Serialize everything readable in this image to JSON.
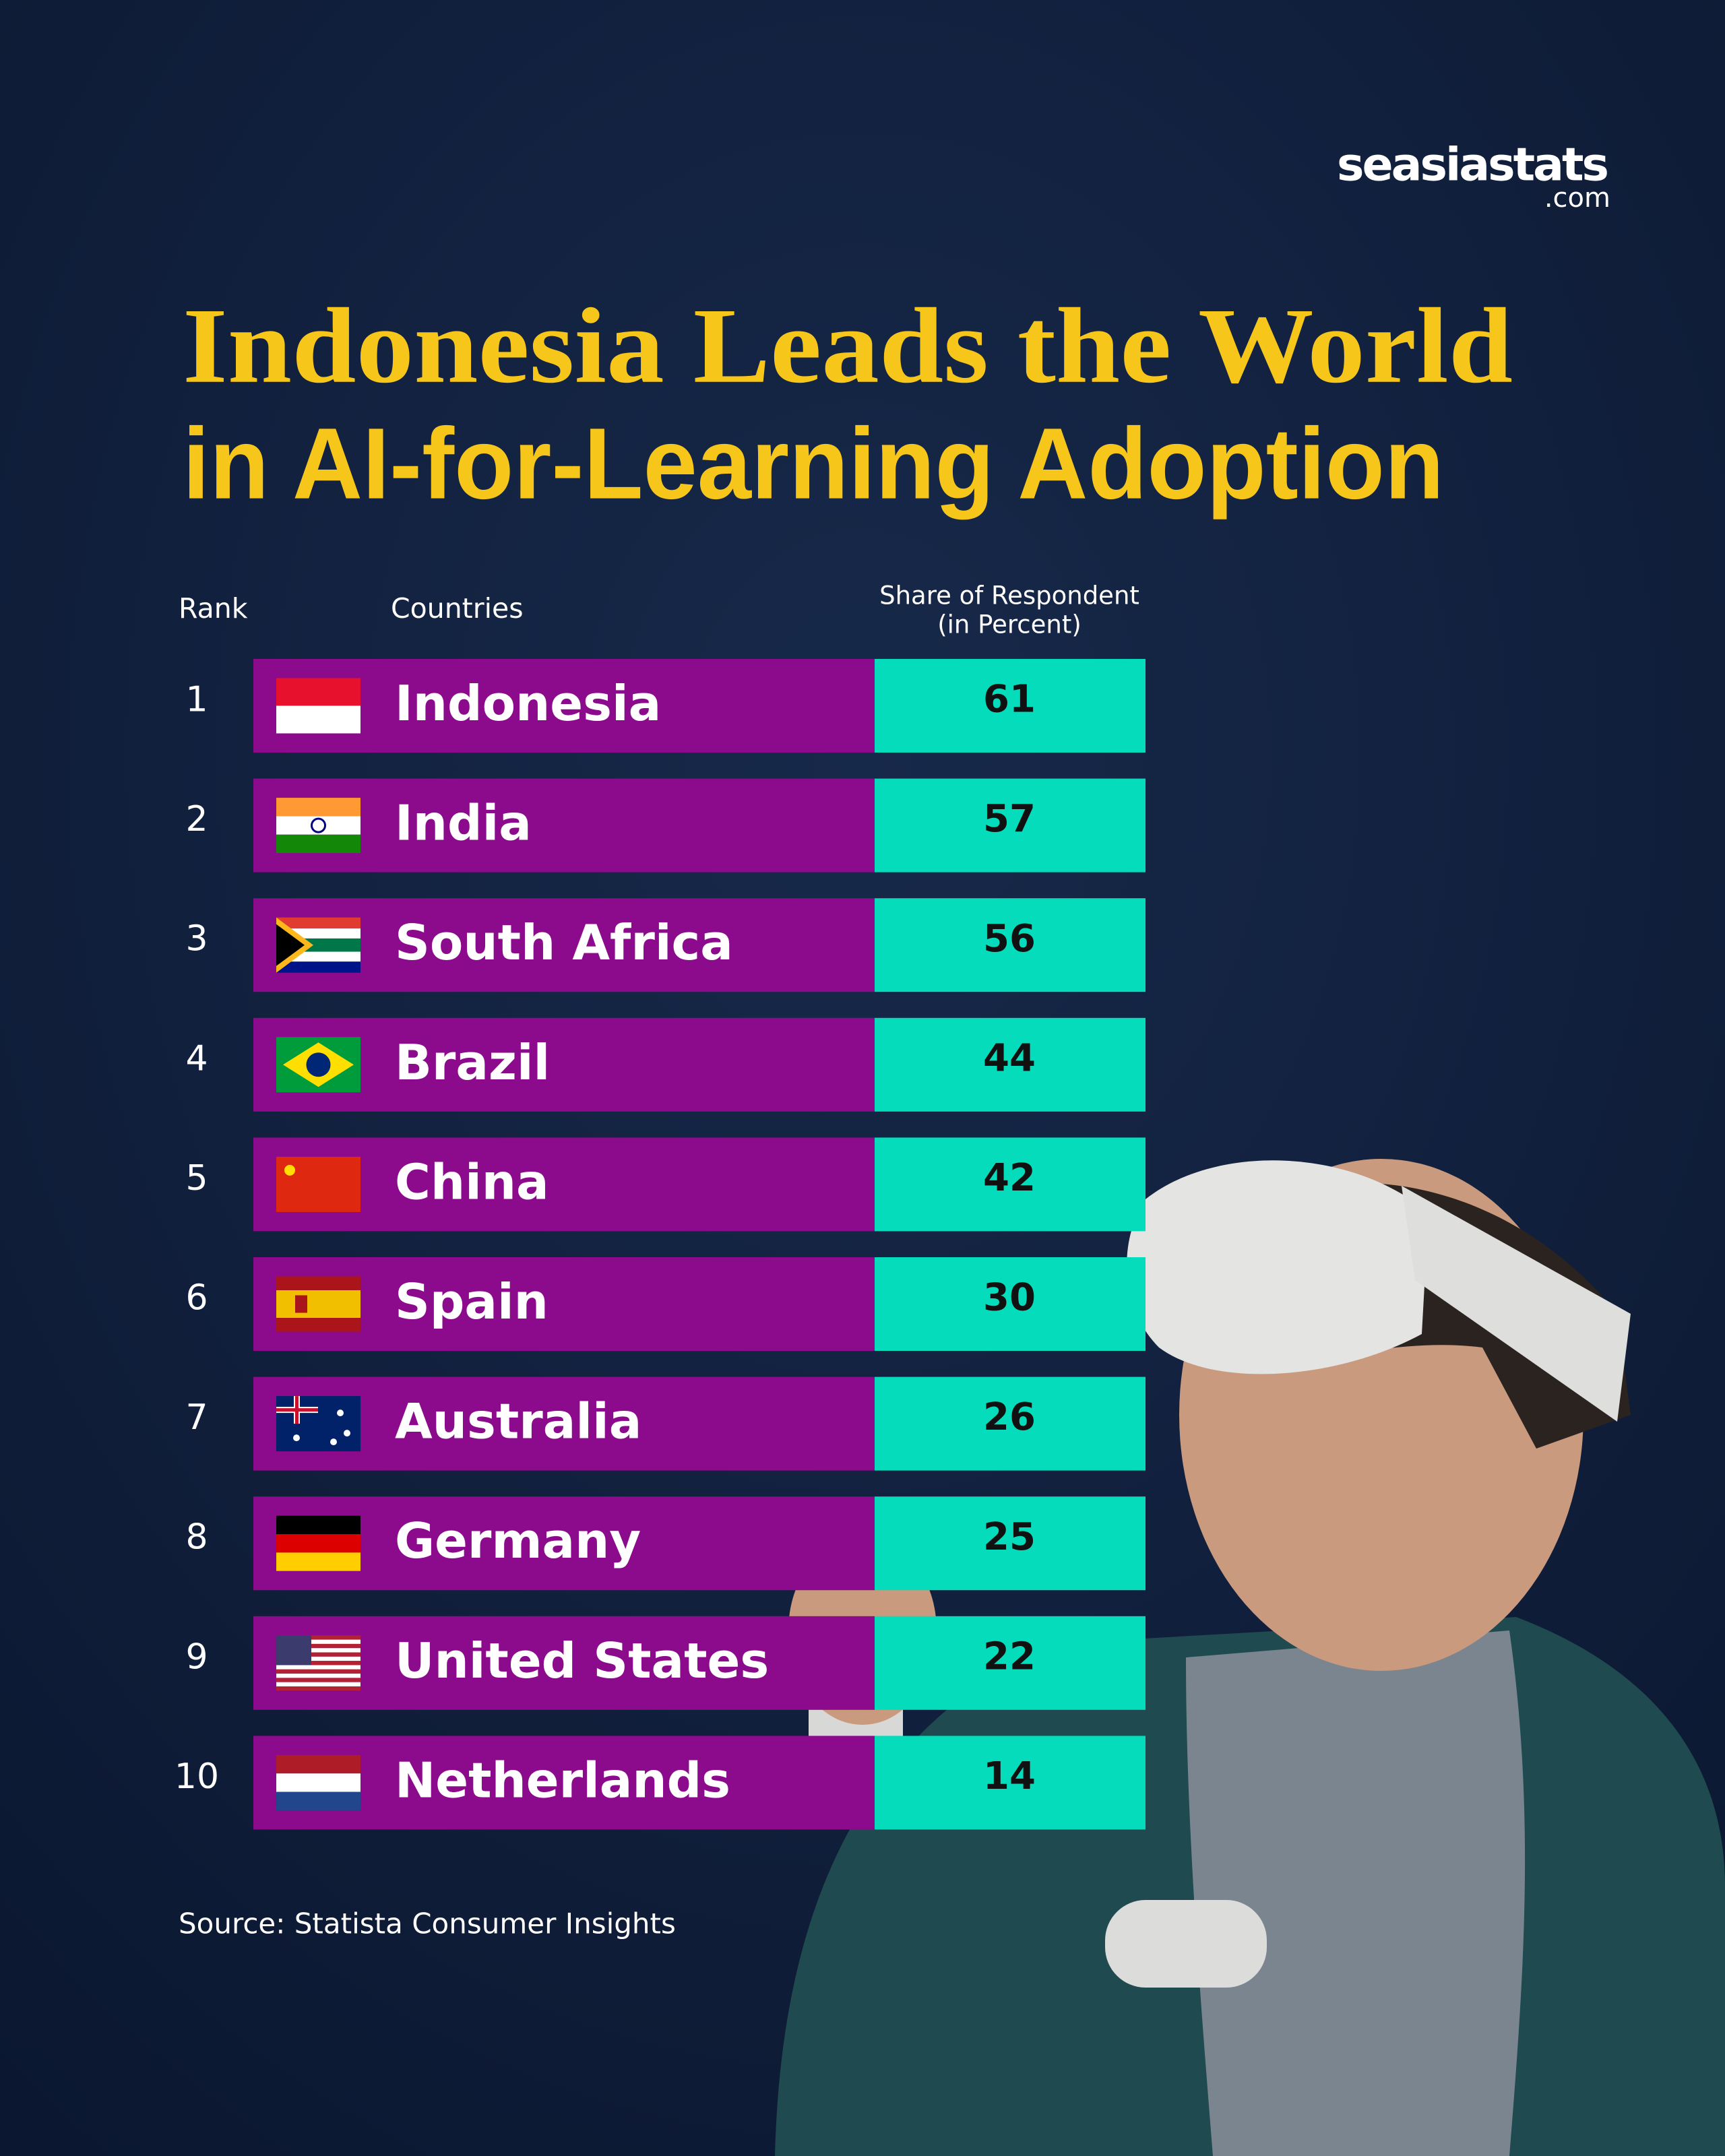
{
  "brand": {
    "name": "seasiastats",
    "suffix": ".com"
  },
  "title": {
    "line1": "Indonesia Leads the World",
    "line2": "in AI-for-Learning Adoption"
  },
  "table": {
    "headers": {
      "rank": "Rank",
      "country": "Countries",
      "share": "Share of Respondent",
      "share_unit": "(in Percent)"
    },
    "rows": [
      [
        1,
        "Indonesia",
        61
      ],
      [
        2,
        "India",
        57
      ],
      [
        3,
        "South Africa",
        56
      ],
      [
        4,
        "Brazil",
        44
      ],
      [
        5,
        "China",
        42
      ],
      [
        6,
        "Spain",
        30
      ],
      [
        7,
        "Australia",
        26
      ],
      [
        8,
        "Germany",
        25
      ],
      [
        9,
        "United States",
        22
      ],
      [
        10,
        "Netherlands",
        14
      ]
    ]
  },
  "source": "Source: Statista Consumer Insights"
}
